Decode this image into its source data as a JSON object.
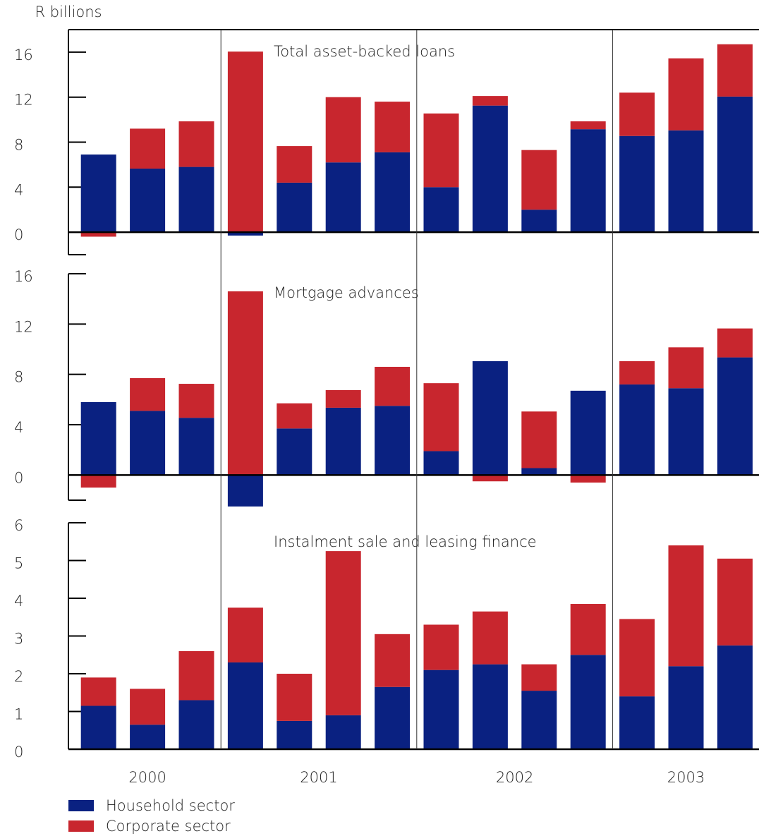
{
  "chart_data": [
    {
      "type": "bar",
      "stacked": true,
      "ylabel": "R billions",
      "title": "Total asset-backed loans",
      "categories": [
        null,
        null,
        null,
        null,
        null,
        null,
        null,
        null,
        null,
        null,
        null,
        null,
        null,
        null
      ],
      "series": [
        {
          "color": "#0a2181",
          "values": [
            6.9,
            5.65,
            5.8,
            -0.3,
            4.4,
            6.2,
            7.1,
            4.0,
            11.25,
            2.0,
            9.15,
            8.55,
            9.05,
            12.05
          ]
        },
        {
          "color": "#c8262e",
          "values": [
            -0.4,
            3.55,
            4.05,
            16.05,
            3.25,
            5.8,
            4.5,
            6.55,
            0.85,
            5.3,
            0.7,
            3.85,
            6.4,
            4.65
          ]
        }
      ],
      "ylim": [
        -2,
        18
      ],
      "yticks": [
        0,
        4,
        8,
        12,
        16
      ]
    },
    {
      "type": "bar",
      "stacked": true,
      "title": "Mortgage advances",
      "categories": [
        null,
        null,
        null,
        null,
        null,
        null,
        null,
        null,
        null,
        null,
        null,
        null,
        null,
        null
      ],
      "series": [
        {
          "color": "#0a2181",
          "values": [
            5.8,
            5.1,
            4.55,
            -2.5,
            3.7,
            5.35,
            5.5,
            1.9,
            9.05,
            0.55,
            6.7,
            7.2,
            6.9,
            9.35
          ]
        },
        {
          "color": "#c8262e",
          "values": [
            -1.0,
            2.6,
            2.7,
            14.6,
            2.0,
            1.4,
            3.1,
            5.4,
            -0.5,
            4.5,
            -0.6,
            1.85,
            3.25,
            2.3
          ]
        }
      ],
      "ylim": [
        -2,
        16
      ],
      "yticks": [
        0,
        4,
        8,
        12,
        16
      ]
    },
    {
      "type": "bar",
      "stacked": true,
      "title": "Instalment sale and leasing finance",
      "categories": [
        null,
        null,
        null,
        null,
        null,
        null,
        null,
        null,
        null,
        null,
        null,
        null,
        null,
        null
      ],
      "groups": [
        "2000",
        "2001",
        "2002",
        "2003"
      ],
      "series": [
        {
          "name": "Household sector",
          "color": "#0a2181",
          "values": [
            1.15,
            0.65,
            1.3,
            2.3,
            0.75,
            0.9,
            1.65,
            2.1,
            2.25,
            1.55,
            2.5,
            1.4,
            2.2,
            2.75
          ]
        },
        {
          "name": "Corporate sector",
          "color": "#c8262e",
          "values": [
            0.75,
            0.95,
            1.3,
            1.45,
            1.25,
            4.35,
            1.4,
            1.2,
            1.4,
            0.7,
            1.35,
            2.05,
            3.2,
            2.3
          ]
        }
      ],
      "ylim": [
        0,
        6
      ],
      "yticks": [
        0,
        1,
        2,
        3,
        4,
        5,
        6
      ]
    }
  ]
}
